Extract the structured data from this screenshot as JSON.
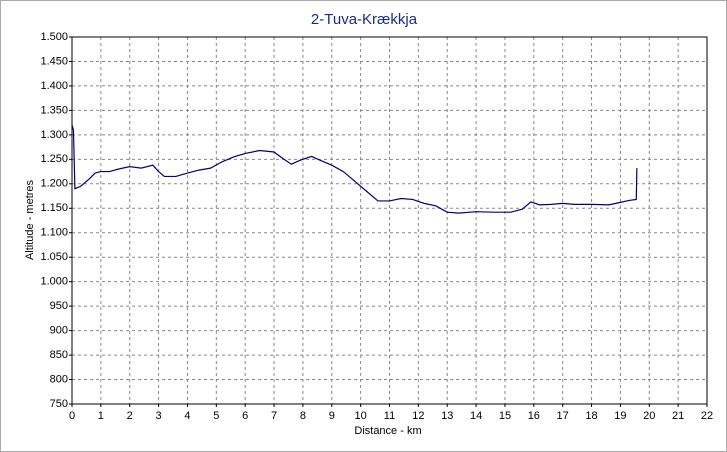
{
  "chart_data": {
    "type": "line",
    "title": "2-Tuva-Krækkja",
    "x_label": "Distance - km",
    "y_label": "Altitude - metres",
    "x": [
      0,
      0.05,
      0.1,
      0.3,
      0.6,
      0.8,
      1.0,
      1.3,
      1.6,
      2.0,
      2.4,
      2.8,
      3.0,
      3.2,
      3.6,
      4.0,
      4.4,
      4.8,
      5.2,
      5.6,
      6.0,
      6.5,
      7.0,
      7.3,
      7.6,
      7.9,
      8.3,
      8.6,
      9.0,
      9.4,
      9.8,
      10.2,
      10.6,
      11.0,
      11.4,
      11.8,
      12.2,
      12.6,
      13.0,
      13.4,
      14.0,
      14.6,
      15.2,
      15.6,
      15.9,
      16.2,
      16.6,
      17.0,
      17.4,
      18.0,
      18.6,
      19.0,
      19.3,
      19.55,
      19.57
    ],
    "series": [
      {
        "name": "Altitude",
        "color": "#000080",
        "values": [
          1320,
          1310,
          1190,
          1195,
          1210,
          1222,
          1225,
          1225,
          1230,
          1235,
          1232,
          1238,
          1225,
          1215,
          1215,
          1222,
          1228,
          1232,
          1245,
          1255,
          1262,
          1268,
          1265,
          1252,
          1240,
          1248,
          1256,
          1248,
          1238,
          1225,
          1205,
          1185,
          1165,
          1165,
          1170,
          1168,
          1160,
          1155,
          1142,
          1140,
          1143,
          1142,
          1142,
          1148,
          1163,
          1157,
          1158,
          1160,
          1158,
          1158,
          1157,
          1162,
          1166,
          1168,
          1232
        ]
      }
    ],
    "xlim": [
      0,
      22
    ],
    "xticks": [
      0,
      1,
      2,
      3,
      4,
      5,
      6,
      7,
      8,
      9,
      10,
      11,
      12,
      13,
      14,
      15,
      16,
      17,
      18,
      19,
      20,
      21,
      22
    ],
    "ylim": [
      750,
      1500
    ],
    "yticks": [
      750,
      800,
      850,
      900,
      950,
      {
        "value": 1000,
        "label": "1.000"
      },
      {
        "value": 1050,
        "label": "1.050"
      },
      {
        "value": 1100,
        "label": "1.100"
      },
      {
        "value": 1150,
        "label": "1.150"
      },
      {
        "value": 1200,
        "label": "1.200"
      },
      {
        "value": 1250,
        "label": "1.250"
      },
      {
        "value": 1300,
        "label": "1.300"
      },
      {
        "value": 1350,
        "label": "1.350"
      },
      {
        "value": 1400,
        "label": "1.400"
      },
      {
        "value": 1450,
        "label": "1.450"
      },
      {
        "value": 1500,
        "label": "1.500"
      }
    ],
    "grid": true
  }
}
